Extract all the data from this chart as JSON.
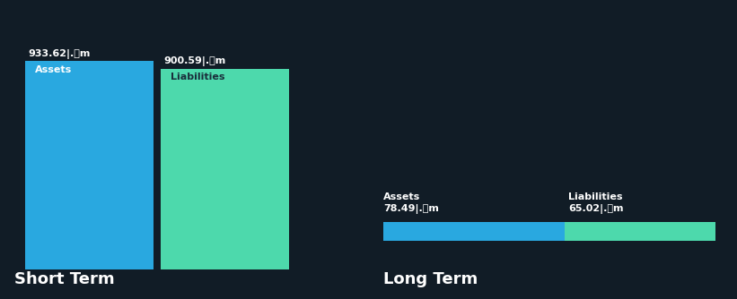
{
  "background_color": "#111c26",
  "short_term": {
    "assets_value": 933.62,
    "liabilities_value": 900.59,
    "label_assets": "933.62|.วm",
    "label_liabilities": "900.59|.วm",
    "assets_color": "#29a8e0",
    "liabilities_color": "#4dd9ac",
    "assets_label": "Assets",
    "liabilities_label": "Liabilities",
    "title": "Short Term"
  },
  "long_term": {
    "assets_value": 78.49,
    "liabilities_value": 65.02,
    "label_assets": "78.49|.วm",
    "label_liabilities": "65.02|.วm",
    "assets_color": "#29a8e0",
    "liabilities_color": "#4dd9ac",
    "assets_label": "Assets",
    "liabilities_label": "Liabilities",
    "title": "Long Term"
  },
  "text_color": "#ffffff",
  "dark_text_color": "#1a2e3b",
  "value_fontsize": 8,
  "bar_label_fontsize": 8,
  "title_fontsize": 13
}
